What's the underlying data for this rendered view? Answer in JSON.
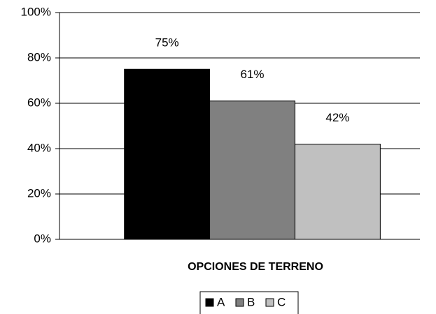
{
  "chart_data": {
    "type": "bar",
    "x_label": "OPCIONES DE TERRENO",
    "categories": [
      null
    ],
    "series": [
      {
        "name": "A",
        "color": "#000000",
        "values": [
          75
        ],
        "value_labels": [
          "75%"
        ]
      },
      {
        "name": "B",
        "color": "#808080",
        "values": [
          61
        ],
        "value_labels": [
          "61%"
        ]
      },
      {
        "name": "C",
        "color": "#c0c0c0",
        "values": [
          42
        ],
        "value_labels": [
          "42%"
        ]
      }
    ],
    "ylim": [
      0,
      100
    ],
    "yticks": [
      {
        "value": 0,
        "label": "0%"
      },
      {
        "value": 20,
        "label": "20%"
      },
      {
        "value": 40,
        "label": "40%"
      },
      {
        "value": 60,
        "label": "60%"
      },
      {
        "value": 80,
        "label": "80%"
      },
      {
        "value": 100,
        "label": "100%"
      }
    ],
    "grid": true,
    "legend": "bottom"
  }
}
